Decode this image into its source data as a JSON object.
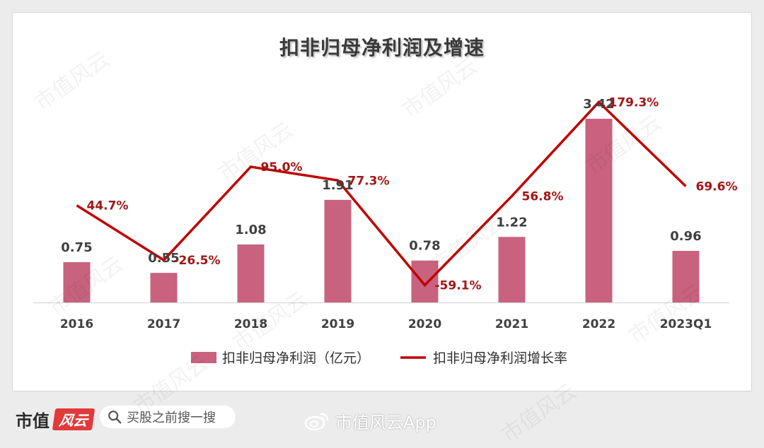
{
  "chart_data": {
    "type": "bar",
    "title": "扣非归母净利润及增速",
    "categories": [
      "2016",
      "2017",
      "2018",
      "2019",
      "2020",
      "2021",
      "2022",
      "2023Q1"
    ],
    "series": [
      {
        "name": "扣非归母净利润（亿元）",
        "type": "bar",
        "color": "#c8627f",
        "values": [
          0.75,
          0.55,
          1.08,
          1.91,
          0.78,
          1.22,
          3.42,
          0.96
        ],
        "labels": [
          "0.75",
          "0.55",
          "1.08",
          "1.91",
          "0.78",
          "1.22",
          "3.42",
          "0.96"
        ]
      },
      {
        "name": "扣非归母净利润增长率",
        "type": "line",
        "color": "#c00000",
        "values": [
          44.7,
          -26.5,
          95.0,
          77.3,
          -59.1,
          56.8,
          179.3,
          69.6
        ],
        "labels": [
          "44.7%",
          "-26.5%",
          "95.0%",
          "77.3%",
          "-59.1%",
          "56.8%",
          "179.3%",
          "69.6%"
        ]
      }
    ],
    "legend_position": "bottom",
    "grid": false
  },
  "footer": {
    "brand": "市值",
    "brand_logo": "风云",
    "search_text": "买股之前搜一搜",
    "weibo_text": "市值风云App"
  },
  "watermark_text": "市值风云"
}
